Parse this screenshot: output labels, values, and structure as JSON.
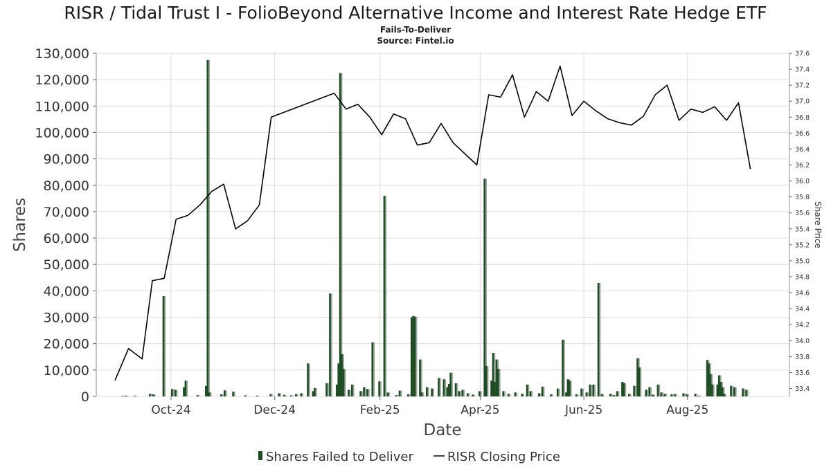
{
  "chart_data": {
    "type": "bar+line",
    "title": "RISR / Tidal Trust I - FolioBeyond Alternative Income and Interest Rate Hedge ETF",
    "subtitle": "Fails-To-Deliver",
    "source": "Source: Fintel.io",
    "xlabel": "Date",
    "ylabel": "Shares",
    "y2label": "Share Price",
    "ylim": [
      0,
      130000
    ],
    "y2lim": [
      33.3,
      37.6
    ],
    "yticks": [
      "0",
      "10,000",
      "20,000",
      "30,000",
      "40,000",
      "50,000",
      "60,000",
      "70,000",
      "80,000",
      "90,000",
      "100,000",
      "110,000",
      "120,000",
      "130,000"
    ],
    "y2ticks": [
      "33.4",
      "33.6",
      "33.8",
      "34.0",
      "34.2",
      "34.4",
      "34.6",
      "34.8",
      "35.0",
      "35.2",
      "35.4",
      "35.6",
      "35.8",
      "36.0",
      "36.2",
      "36.4",
      "36.6",
      "36.8",
      "37.0",
      "37.2",
      "37.4",
      "37.6"
    ],
    "xrange": [
      "2024-08-18",
      "2025-09-30"
    ],
    "xticks": [
      {
        "label": "Oct-24",
        "date": "2024-10-01"
      },
      {
        "label": "Dec-24",
        "date": "2024-12-01"
      },
      {
        "label": "Feb-25",
        "date": "2025-02-01"
      },
      {
        "label": "Apr-25",
        "date": "2025-04-01"
      },
      {
        "label": "Jun-25",
        "date": "2025-06-01"
      },
      {
        "label": "Aug-25",
        "date": "2025-08-01"
      }
    ],
    "grid": true,
    "legend_position": "bottom-center",
    "colors": {
      "bar": "#1e4d24",
      "bar_shadow": "#9aa69a",
      "line": "#000000",
      "grid": "#dcdcdc"
    },
    "series": [
      {
        "name": "Shares Failed to Deliver",
        "kind": "bar",
        "points": [
          [
            "2024-09-02",
            200
          ],
          [
            "2024-09-04",
            300
          ],
          [
            "2024-09-09",
            200
          ],
          [
            "2024-09-18",
            1000
          ],
          [
            "2024-09-20",
            800
          ],
          [
            "2024-09-26",
            38000
          ],
          [
            "2024-10-01",
            2800
          ],
          [
            "2024-10-03",
            2500
          ],
          [
            "2024-10-08",
            3500
          ],
          [
            "2024-10-09",
            6000
          ],
          [
            "2024-10-16",
            500
          ],
          [
            "2024-10-21",
            4000
          ],
          [
            "2024-10-22",
            127500
          ],
          [
            "2024-10-23",
            1500
          ],
          [
            "2024-10-30",
            800
          ],
          [
            "2024-11-01",
            2300
          ],
          [
            "2024-11-06",
            1800
          ],
          [
            "2024-11-13",
            400
          ],
          [
            "2024-11-20",
            300
          ],
          [
            "2024-11-28",
            900
          ],
          [
            "2024-12-03",
            1200
          ],
          [
            "2024-12-06",
            600
          ],
          [
            "2024-12-10",
            400
          ],
          [
            "2024-12-13",
            900
          ],
          [
            "2024-12-16",
            1200
          ],
          [
            "2024-12-20",
            12500
          ],
          [
            "2024-12-23",
            2000
          ],
          [
            "2024-12-24",
            3200
          ],
          [
            "2024-12-31",
            5000
          ],
          [
            "2025-01-02",
            39000
          ],
          [
            "2025-01-06",
            4500
          ],
          [
            "2025-01-07",
            12500
          ],
          [
            "2025-01-08",
            122500
          ],
          [
            "2025-01-09",
            16000
          ],
          [
            "2025-01-10",
            10500
          ],
          [
            "2025-01-13",
            2500
          ],
          [
            "2025-01-15",
            4500
          ],
          [
            "2025-01-20",
            2000
          ],
          [
            "2025-01-22",
            3500
          ],
          [
            "2025-01-24",
            2800
          ],
          [
            "2025-01-27",
            20500
          ],
          [
            "2025-01-31",
            5700
          ],
          [
            "2025-02-03",
            76000
          ],
          [
            "2025-02-05",
            1500
          ],
          [
            "2025-02-10",
            500
          ],
          [
            "2025-02-12",
            2200
          ],
          [
            "2025-02-17",
            800
          ],
          [
            "2025-02-19",
            30000
          ],
          [
            "2025-02-20",
            30500
          ],
          [
            "2025-02-21",
            30200
          ],
          [
            "2025-02-24",
            14000
          ],
          [
            "2025-02-25",
            1500
          ],
          [
            "2025-02-28",
            3500
          ],
          [
            "2025-03-03",
            3000
          ],
          [
            "2025-03-07",
            7000
          ],
          [
            "2025-03-10",
            6500
          ],
          [
            "2025-03-12",
            3500
          ],
          [
            "2025-03-13",
            4700
          ],
          [
            "2025-03-14",
            9000
          ],
          [
            "2025-03-17",
            5000
          ],
          [
            "2025-03-19",
            2000
          ],
          [
            "2025-03-21",
            2500
          ],
          [
            "2025-03-24",
            1200
          ],
          [
            "2025-03-27",
            700
          ],
          [
            "2025-03-31",
            2000
          ],
          [
            "2025-04-03",
            82500
          ],
          [
            "2025-04-04",
            11500
          ],
          [
            "2025-04-07",
            6000
          ],
          [
            "2025-04-08",
            16500
          ],
          [
            "2025-04-09",
            5500
          ],
          [
            "2025-04-10",
            14000
          ],
          [
            "2025-04-11",
            10500
          ],
          [
            "2025-04-14",
            2000
          ],
          [
            "2025-04-17",
            1000
          ],
          [
            "2025-04-21",
            1500
          ],
          [
            "2025-04-25",
            1000
          ],
          [
            "2025-04-28",
            4500
          ],
          [
            "2025-04-30",
            2000
          ],
          [
            "2025-05-05",
            1200
          ],
          [
            "2025-05-07",
            3700
          ],
          [
            "2025-05-12",
            800
          ],
          [
            "2025-05-16",
            3000
          ],
          [
            "2025-05-19",
            21500
          ],
          [
            "2025-05-21",
            1500
          ],
          [
            "2025-05-22",
            6500
          ],
          [
            "2025-05-23",
            6000
          ],
          [
            "2025-05-27",
            800
          ],
          [
            "2025-05-30",
            3000
          ],
          [
            "2025-06-02",
            1500
          ],
          [
            "2025-06-04",
            4500
          ],
          [
            "2025-06-06",
            4500
          ],
          [
            "2025-06-09",
            43000
          ],
          [
            "2025-06-11",
            900
          ],
          [
            "2025-06-16",
            1000
          ],
          [
            "2025-06-18",
            500
          ],
          [
            "2025-06-20",
            2000
          ],
          [
            "2025-06-23",
            5500
          ],
          [
            "2025-06-24",
            5000
          ],
          [
            "2025-06-27",
            1000
          ],
          [
            "2025-06-30",
            4000
          ],
          [
            "2025-07-02",
            14500
          ],
          [
            "2025-07-03",
            11000
          ],
          [
            "2025-07-07",
            2500
          ],
          [
            "2025-07-09",
            3500
          ],
          [
            "2025-07-11",
            700
          ],
          [
            "2025-07-14",
            4500
          ],
          [
            "2025-07-16",
            1500
          ],
          [
            "2025-07-18",
            1000
          ],
          [
            "2025-07-22",
            800
          ],
          [
            "2025-07-24",
            900
          ],
          [
            "2025-07-29",
            1200
          ],
          [
            "2025-07-31",
            800
          ],
          [
            "2025-08-05",
            1000
          ],
          [
            "2025-08-07",
            300
          ],
          [
            "2025-08-12",
            13800
          ],
          [
            "2025-08-13",
            12500
          ],
          [
            "2025-08-14",
            8500
          ],
          [
            "2025-08-15",
            4500
          ],
          [
            "2025-08-18",
            4500
          ],
          [
            "2025-08-19",
            8000
          ],
          [
            "2025-08-20",
            5500
          ],
          [
            "2025-08-21",
            3500
          ],
          [
            "2025-08-22",
            1000
          ],
          [
            "2025-08-26",
            4000
          ],
          [
            "2025-08-28",
            3500
          ],
          [
            "2025-09-02",
            3000
          ],
          [
            "2025-09-04",
            2500
          ]
        ]
      },
      {
        "name": "RISR Closing Price",
        "kind": "line",
        "points": [
          [
            "2024-08-29",
            33.5
          ],
          [
            "2024-09-06",
            33.9
          ],
          [
            "2024-09-14",
            33.77
          ],
          [
            "2024-09-20",
            34.75
          ],
          [
            "2024-09-27",
            34.78
          ],
          [
            "2024-10-04",
            35.52
          ],
          [
            "2024-10-11",
            35.57
          ],
          [
            "2024-10-18",
            35.7
          ],
          [
            "2024-10-25",
            35.87
          ],
          [
            "2024-11-01",
            35.96
          ],
          [
            "2024-11-08",
            35.4
          ],
          [
            "2024-11-15",
            35.5
          ],
          [
            "2024-11-22",
            35.7
          ],
          [
            "2024-11-29",
            36.8
          ],
          [
            "2025-01-05",
            37.1
          ],
          [
            "2025-01-12",
            36.9
          ],
          [
            "2025-01-19",
            36.96
          ],
          [
            "2025-01-26",
            36.8
          ],
          [
            "2025-02-02",
            36.58
          ],
          [
            "2025-02-09",
            36.84
          ],
          [
            "2025-02-16",
            36.78
          ],
          [
            "2025-02-23",
            36.45
          ],
          [
            "2025-03-02",
            36.48
          ],
          [
            "2025-03-09",
            36.72
          ],
          [
            "2025-03-16",
            36.48
          ],
          [
            "2025-03-30",
            36.2
          ],
          [
            "2025-04-06",
            37.08
          ],
          [
            "2025-04-13",
            37.05
          ],
          [
            "2025-04-20",
            37.33
          ],
          [
            "2025-04-27",
            36.8
          ],
          [
            "2025-05-04",
            37.12
          ],
          [
            "2025-05-11",
            37.0
          ],
          [
            "2025-05-18",
            37.44
          ],
          [
            "2025-05-25",
            36.82
          ],
          [
            "2025-06-01",
            37.0
          ],
          [
            "2025-06-08",
            36.88
          ],
          [
            "2025-06-15",
            36.78
          ],
          [
            "2025-06-22",
            36.73
          ],
          [
            "2025-06-29",
            36.7
          ],
          [
            "2025-07-06",
            36.81
          ],
          [
            "2025-07-13",
            37.08
          ],
          [
            "2025-07-20",
            37.2
          ],
          [
            "2025-07-27",
            36.76
          ],
          [
            "2025-08-03",
            36.9
          ],
          [
            "2025-08-10",
            36.86
          ],
          [
            "2025-08-17",
            36.93
          ],
          [
            "2025-08-24",
            36.76
          ],
          [
            "2025-08-31",
            36.98
          ],
          [
            "2025-09-07",
            36.15
          ]
        ]
      }
    ]
  },
  "legend": {
    "bar_label": "Shares Failed to Deliver",
    "line_label": "RISR Closing Price"
  }
}
